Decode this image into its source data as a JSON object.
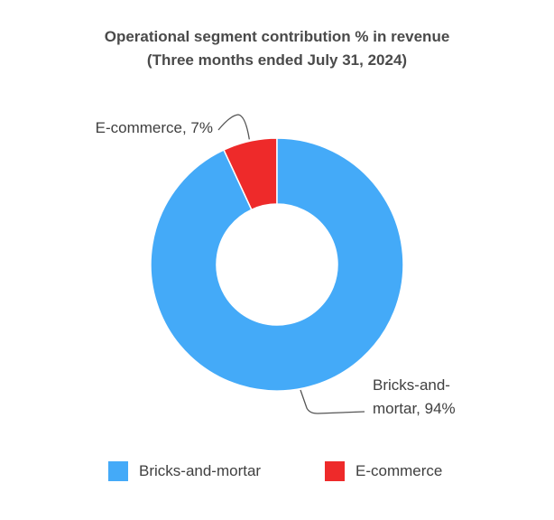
{
  "chart_data": {
    "type": "pie",
    "variant": "donut",
    "title": "Operational segment contribution % in revenue",
    "subtitle": "(Three months ended July 31, 2024)",
    "categories": [
      "E-commerce",
      "Bricks-and-mortar"
    ],
    "values": [
      7,
      94
    ],
    "unit": "%",
    "data_labels": [
      "E-commerce, 7%",
      "Bricks-and-mortar, 94%"
    ],
    "colors": [
      "#ee2a2a",
      "#44aaf8"
    ],
    "legend": {
      "position": "bottom",
      "entries": [
        "Bricks-and-mortar",
        "E-commerce"
      ]
    }
  }
}
